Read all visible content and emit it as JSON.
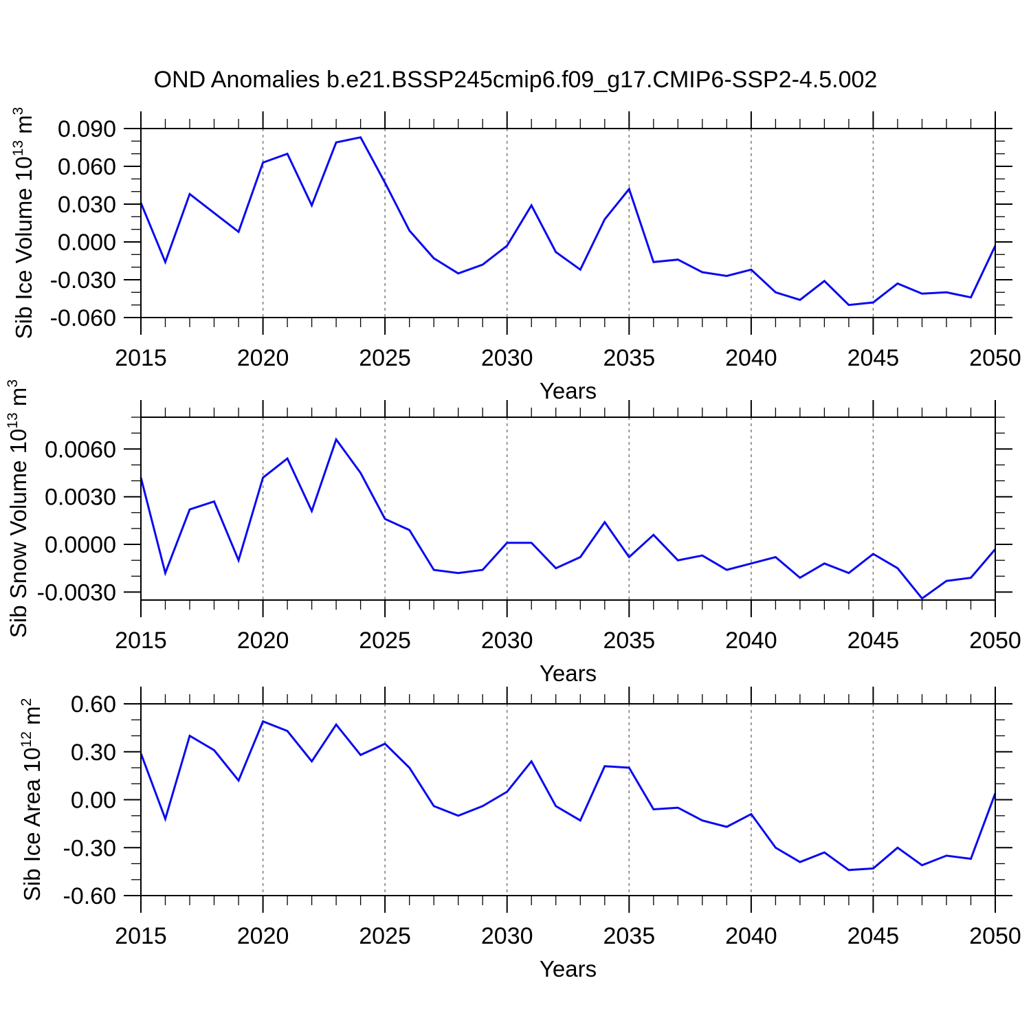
{
  "title": "OND Anomalies b.e21.BSSP245cmip6.f09_g17.CMIP6-SSP2-4.5.002",
  "line_color": "#0a0af0",
  "gridline_color": "#7a7a7a",
  "frame_color": "#000000",
  "chart_data": [
    {
      "type": "line",
      "id": "sib-ice-volume",
      "ylabel": {
        "text": "Sib Ice Volume 10",
        "exponent": "13",
        "unit": " m",
        "unit_exponent": "3"
      },
      "xlabel": "Years",
      "x": [
        2015,
        2016,
        2017,
        2018,
        2019,
        2020,
        2021,
        2022,
        2023,
        2024,
        2025,
        2026,
        2027,
        2028,
        2029,
        2030,
        2031,
        2032,
        2033,
        2034,
        2035,
        2036,
        2037,
        2038,
        2039,
        2040,
        2041,
        2042,
        2043,
        2044,
        2045,
        2046,
        2047,
        2048,
        2049,
        2050
      ],
      "values": [
        0.031,
        -0.016,
        0.038,
        0.023,
        0.008,
        0.063,
        0.07,
        0.029,
        0.079,
        0.083,
        0.047,
        0.009,
        -0.013,
        -0.025,
        -0.018,
        -0.003,
        0.029,
        -0.008,
        -0.022,
        0.018,
        0.042,
        -0.016,
        -0.014,
        -0.024,
        -0.027,
        -0.022,
        -0.04,
        -0.046,
        -0.031,
        -0.05,
        -0.048,
        -0.033,
        -0.041,
        -0.04,
        -0.044,
        -0.003
      ],
      "ylim": [
        -0.06,
        0.09
      ],
      "ytick_values": [
        0.09,
        0.06,
        0.03,
        0.0,
        -0.03,
        -0.06
      ],
      "ytick_labels": [
        "0.090",
        "0.060",
        "0.030",
        "0.000",
        "-0.030",
        "-0.060"
      ],
      "y_minor_step": 0.01,
      "xtick_values": [
        2015,
        2020,
        2025,
        2030,
        2035,
        2040,
        2045,
        2050
      ],
      "xtick_labels": [
        "2015",
        "2020",
        "2025",
        "2030",
        "2035",
        "2040",
        "2045",
        "2050"
      ],
      "x_minor_step": 1,
      "grid_x": [
        2020,
        2025,
        2030,
        2035,
        2040,
        2045
      ],
      "grid_on": true,
      "legend": "none"
    },
    {
      "type": "line",
      "id": "sib-snow-volume",
      "ylabel": {
        "text": "Sib Snow Volume 10",
        "exponent": "13",
        "unit": " m",
        "unit_exponent": "3"
      },
      "xlabel": "Years",
      "x": [
        2015,
        2016,
        2017,
        2018,
        2019,
        2020,
        2021,
        2022,
        2023,
        2024,
        2025,
        2026,
        2027,
        2028,
        2029,
        2030,
        2031,
        2032,
        2033,
        2034,
        2035,
        2036,
        2037,
        2038,
        2039,
        2040,
        2041,
        2042,
        2043,
        2044,
        2045,
        2046,
        2047,
        2048,
        2049,
        2050
      ],
      "values": [
        0.0042,
        -0.0018,
        0.0022,
        0.0027,
        -0.001,
        0.0042,
        0.0054,
        0.0021,
        0.0066,
        0.0045,
        0.0016,
        0.0009,
        -0.0016,
        -0.0018,
        -0.0016,
        0.0001,
        0.0001,
        -0.0015,
        -0.0008,
        0.0014,
        -0.0008,
        0.0006,
        -0.001,
        -0.0007,
        -0.0016,
        -0.0012,
        -0.0008,
        -0.0021,
        -0.0012,
        -0.0018,
        -0.0006,
        -0.0015,
        -0.0034,
        -0.0023,
        -0.0021,
        -0.0003
      ],
      "ylim": [
        -0.0035,
        0.008
      ],
      "ytick_values": [
        0.006,
        0.003,
        0.0,
        -0.003
      ],
      "ytick_labels": [
        "0.0060",
        "0.0030",
        "0.0000",
        "-0.0030"
      ],
      "y_minor_step": 0.001,
      "xtick_values": [
        2015,
        2020,
        2025,
        2030,
        2035,
        2040,
        2045,
        2050
      ],
      "xtick_labels": [
        "2015",
        "2020",
        "2025",
        "2030",
        "2035",
        "2040",
        "2045",
        "2050"
      ],
      "x_minor_step": 1,
      "grid_x": [
        2020,
        2025,
        2030,
        2035,
        2040,
        2045
      ],
      "grid_on": true,
      "legend": "none"
    },
    {
      "type": "line",
      "id": "sib-ice-area",
      "ylabel": {
        "text": "Sib Ice Area 10",
        "exponent": "12",
        "unit": " m",
        "unit_exponent": "2"
      },
      "xlabel": "Years",
      "x": [
        2015,
        2016,
        2017,
        2018,
        2019,
        2020,
        2021,
        2022,
        2023,
        2024,
        2025,
        2026,
        2027,
        2028,
        2029,
        2030,
        2031,
        2032,
        2033,
        2034,
        2035,
        2036,
        2037,
        2038,
        2039,
        2040,
        2041,
        2042,
        2043,
        2044,
        2045,
        2046,
        2047,
        2048,
        2049,
        2050
      ],
      "values": [
        0.29,
        -0.12,
        0.4,
        0.31,
        0.12,
        0.49,
        0.43,
        0.24,
        0.47,
        0.28,
        0.35,
        0.2,
        -0.04,
        -0.1,
        -0.04,
        0.05,
        0.24,
        -0.04,
        -0.13,
        0.21,
        0.2,
        -0.06,
        -0.05,
        -0.13,
        -0.17,
        -0.09,
        -0.3,
        -0.39,
        -0.33,
        -0.44,
        -0.43,
        -0.3,
        -0.41,
        -0.35,
        -0.37,
        0.04
      ],
      "ylim": [
        -0.6,
        0.6
      ],
      "ytick_values": [
        0.6,
        0.3,
        0.0,
        -0.3,
        -0.6
      ],
      "ytick_labels": [
        "0.60",
        "0.30",
        "0.00",
        "-0.30",
        "-0.60"
      ],
      "y_minor_step": 0.1,
      "xtick_values": [
        2015,
        2020,
        2025,
        2030,
        2035,
        2040,
        2045,
        2050
      ],
      "xtick_labels": [
        "2015",
        "2020",
        "2025",
        "2030",
        "2035",
        "2040",
        "2045",
        "2050"
      ],
      "x_minor_step": 1,
      "grid_x": [
        2020,
        2025,
        2030,
        2035,
        2040,
        2045
      ],
      "grid_on": true,
      "legend": "none"
    }
  ]
}
